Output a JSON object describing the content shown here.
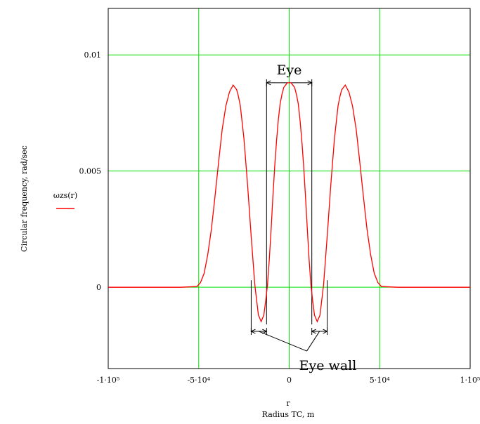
{
  "chart_data": {
    "type": "line",
    "xlabel": "Radius TC, m",
    "xlabel_over": "r",
    "ylabel": "Circular frequency, rad/sec",
    "xlim": [
      -100000,
      100000
    ],
    "ylim": [
      -0.0035,
      0.012
    ],
    "grid": true,
    "grid_color": "#00e000",
    "legend_position": "left",
    "x_ticks": [
      {
        "value": -100000,
        "label": "-1·10⁵"
      },
      {
        "value": -50000,
        "label": "-5·10⁴"
      },
      {
        "value": 0,
        "label": "0"
      },
      {
        "value": 50000,
        "label": "5·10⁴"
      },
      {
        "value": 100000,
        "label": "1·10⁵"
      }
    ],
    "y_ticks": [
      {
        "value": 0,
        "label": "0"
      },
      {
        "value": 0.005,
        "label": "0.005"
      },
      {
        "value": 0.01,
        "label": "0.01"
      }
    ],
    "series": [
      {
        "name": "ωzs(r)",
        "color": "#ff0000",
        "x": [
          -100000,
          -60000,
          -51000,
          -49000,
          -47000,
          -45000,
          -43000,
          -41000,
          -39000,
          -37000,
          -35000,
          -33000,
          -31000,
          -29000,
          -28000,
          -27000,
          -25000,
          -23000,
          -21000,
          -19000,
          -17000,
          -15500,
          -14000,
          -13000,
          -12000,
          -11000,
          -10000,
          -9000,
          -8000,
          -7000,
          -6000,
          -5000,
          -4000,
          -3000,
          -2000,
          -1000,
          0,
          1000,
          2000,
          3000,
          4000,
          5000,
          6000,
          7000,
          8000,
          9000,
          10000,
          11000,
          12000,
          13000,
          14000,
          15500,
          17000,
          19000,
          21000,
          23000,
          25000,
          27000,
          28000,
          29000,
          31000,
          33000,
          35000,
          37000,
          39000,
          41000,
          43000,
          45000,
          47000,
          49000,
          51000,
          60000,
          100000
        ],
        "values": [
          0,
          0,
          3e-05,
          0.0002,
          0.0006,
          0.0014,
          0.0025,
          0.0039,
          0.0054,
          0.0068,
          0.0078,
          0.0084,
          0.0087,
          0.0085,
          0.0082,
          0.0078,
          0.0064,
          0.0044,
          0.0022,
          0.0001,
          -0.0012,
          -0.00148,
          -0.0012,
          -0.0006,
          0.0001,
          0.0012,
          0.0025,
          0.0039,
          0.0052,
          0.0063,
          0.0072,
          0.0079,
          0.0083,
          0.0086,
          0.0087,
          0.0088,
          0.0088,
          0.0088,
          0.0087,
          0.0086,
          0.0083,
          0.0079,
          0.0072,
          0.0063,
          0.0052,
          0.0039,
          0.0025,
          0.0012,
          0.0001,
          -0.0006,
          -0.0012,
          -0.00148,
          -0.0012,
          0.0001,
          0.0022,
          0.0044,
          0.0064,
          0.0078,
          0.0082,
          0.0085,
          0.0087,
          0.0084,
          0.0078,
          0.0068,
          0.0054,
          0.0039,
          0.0025,
          0.0014,
          0.0006,
          0.0002,
          3e-05,
          0,
          0
        ]
      }
    ],
    "annotations": [
      {
        "text": "Eye",
        "span_x": [
          -12500,
          12500
        ],
        "arrow_y": 0.0088,
        "box_y": [
          -0.0016,
          0.0088
        ]
      },
      {
        "text": "Eye wall",
        "spans_x": [
          [
            -21000,
            -12500
          ],
          [
            12500,
            21000
          ]
        ],
        "arrow_y": -0.0019
      }
    ]
  }
}
